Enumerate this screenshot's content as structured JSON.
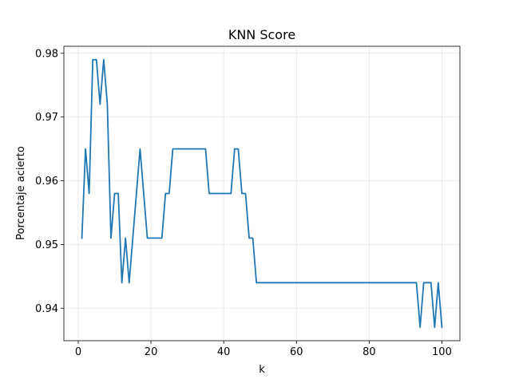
{
  "chart_data": {
    "type": "line",
    "title": "KNN Score",
    "xlabel": "k",
    "ylabel": "Porcentaje acierto",
    "xlim": [
      -3.95,
      104.95
    ],
    "ylim": [
      0.9349,
      0.9811
    ],
    "xticks": [
      0,
      20,
      40,
      60,
      80,
      100
    ],
    "xtick_labels": [
      "0",
      "20",
      "40",
      "60",
      "80",
      "100"
    ],
    "yticks": [
      0.94,
      0.95,
      0.96,
      0.97,
      0.98
    ],
    "ytick_labels": [
      "0.94",
      "0.95",
      "0.96",
      "0.97",
      "0.98"
    ],
    "grid": true,
    "line_color": "#1f77b4",
    "series": [
      {
        "x": [
          1,
          2,
          3,
          4,
          5,
          6,
          7,
          8,
          9,
          10,
          11,
          12,
          13,
          14,
          15,
          16,
          17,
          18,
          19,
          20,
          21,
          22,
          23,
          24,
          25,
          26,
          27,
          28,
          29,
          30,
          31,
          32,
          33,
          34,
          35,
          36,
          37,
          38,
          39,
          40,
          41,
          42,
          43,
          44,
          45,
          46,
          47,
          48,
          49,
          50,
          51,
          52,
          53,
          54,
          55,
          56,
          57,
          58,
          59,
          60,
          61,
          62,
          63,
          64,
          65,
          66,
          67,
          68,
          69,
          70,
          71,
          72,
          73,
          74,
          75,
          76,
          77,
          78,
          79,
          80,
          81,
          82,
          83,
          84,
          85,
          86,
          87,
          88,
          89,
          90,
          91,
          92,
          93,
          94,
          95,
          96,
          97,
          98,
          99,
          100
        ],
        "values": [
          0.951,
          0.965,
          0.958,
          0.979,
          0.979,
          0.972,
          0.979,
          0.972,
          0.951,
          0.958,
          0.958,
          0.944,
          0.951,
          0.944,
          0.951,
          0.958,
          0.965,
          0.958,
          0.951,
          0.951,
          0.951,
          0.951,
          0.951,
          0.958,
          0.958,
          0.965,
          0.965,
          0.965,
          0.965,
          0.965,
          0.965,
          0.965,
          0.965,
          0.965,
          0.965,
          0.958,
          0.958,
          0.958,
          0.958,
          0.958,
          0.958,
          0.958,
          0.965,
          0.965,
          0.958,
          0.958,
          0.951,
          0.951,
          0.944,
          0.944,
          0.944,
          0.944,
          0.944,
          0.944,
          0.944,
          0.944,
          0.944,
          0.944,
          0.944,
          0.944,
          0.944,
          0.944,
          0.944,
          0.944,
          0.944,
          0.944,
          0.944,
          0.944,
          0.944,
          0.944,
          0.944,
          0.944,
          0.944,
          0.944,
          0.944,
          0.944,
          0.944,
          0.944,
          0.944,
          0.944,
          0.944,
          0.944,
          0.944,
          0.944,
          0.944,
          0.944,
          0.944,
          0.944,
          0.944,
          0.944,
          0.944,
          0.944,
          0.944,
          0.937,
          0.944,
          0.944,
          0.944,
          0.937,
          0.944,
          0.937
        ]
      }
    ]
  }
}
